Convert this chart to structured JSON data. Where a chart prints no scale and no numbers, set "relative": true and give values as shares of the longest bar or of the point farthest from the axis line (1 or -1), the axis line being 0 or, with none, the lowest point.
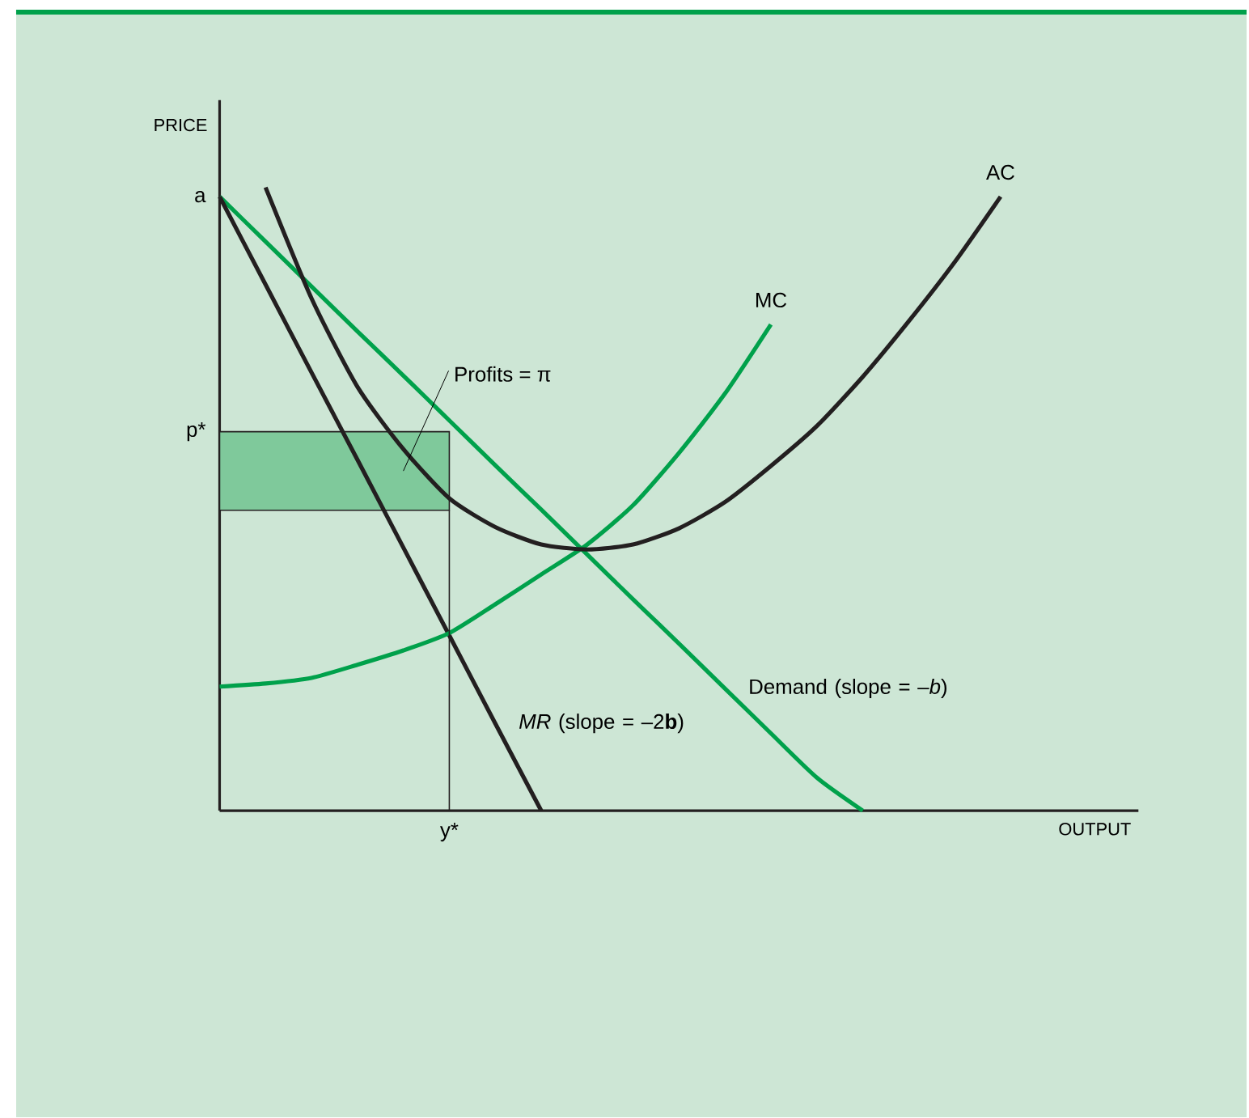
{
  "chart_data": {
    "type": "line",
    "relative": true,
    "xlabel": "OUTPUT",
    "ylabel": "PRICE",
    "tick_labels": false,
    "categories": [
      null,
      null,
      null,
      null,
      null,
      null,
      null,
      null,
      null,
      null,
      null,
      null,
      null,
      null,
      null,
      null,
      null,
      null,
      null,
      null,
      null
    ],
    "series": [
      {
        "name": "Demand (slope = –*b*)",
        "color": "#00a14b",
        "values": [
          0.985,
          0.913,
          0.841,
          0.769,
          0.698,
          0.626,
          0.554,
          0.483,
          0.411,
          0.339,
          0.268,
          0.196,
          0.124,
          0.053,
          0,
          null,
          null,
          null,
          null,
          null,
          null
        ]
      },
      {
        "name": "*MR* (slope = –2**b**)",
        "color": "#231f20",
        "values": [
          0.985,
          0.844,
          0.703,
          0.563,
          0.422,
          0.281,
          0.14,
          0,
          null,
          null,
          null,
          null,
          null,
          null,
          null,
          null,
          null,
          null,
          null,
          null,
          null
        ]
      },
      {
        "name": "MC",
        "color": "#00a14b",
        "values": [
          0.199,
          0.204,
          0.213,
          0.234,
          0.257,
          0.285,
          0.331,
          0.379,
          0.427,
          0.49,
          0.574,
          0.669,
          0.78,
          null,
          null,
          null,
          null,
          null,
          null,
          null,
          null
        ]
      },
      {
        "name": "AC",
        "color": "#231f20",
        "values": [
          null,
          1.0,
          0.822,
          0.68,
          0.58,
          0.501,
          0.455,
          0.427,
          0.419,
          0.427,
          0.453,
          0.495,
          0.553,
          0.617,
          0.696,
          0.785,
          0.88,
          0.985,
          null,
          null,
          null
        ]
      }
    ],
    "bands": [
      {
        "axis": "y",
        "from": 0.482,
        "to": 0.608,
        "color": "#7fc99b"
      }
    ],
    "annotations": [
      "a",
      "p*",
      "Profits = π",
      "y*"
    ]
  }
}
